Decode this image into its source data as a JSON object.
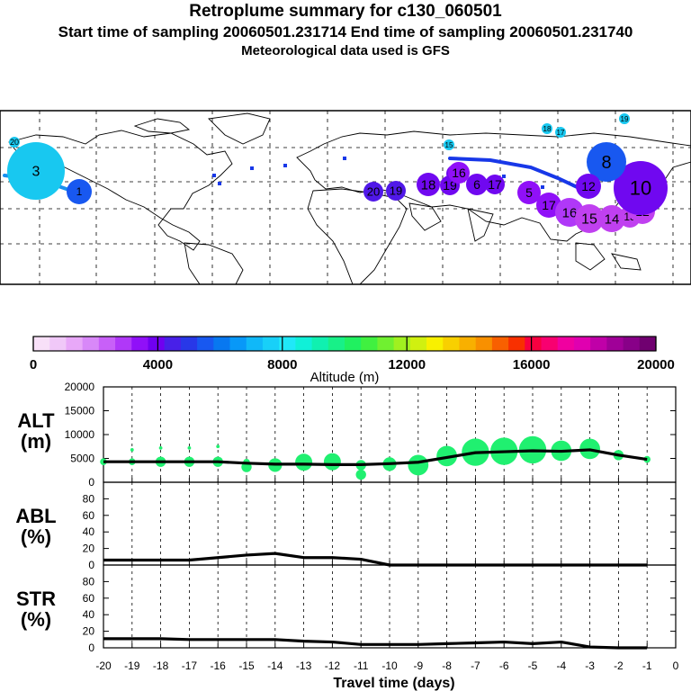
{
  "header": {
    "title": "Retroplume summary for c130_060501",
    "sampling_line": "Start time of sampling 20060501.231714     End time of sampling 20060501.231740",
    "met_line": "Meteorological data used is GFS"
  },
  "colorbar": {
    "ticks": [
      "0",
      "4000",
      "8000",
      "12000",
      "16000",
      "20000"
    ],
    "label": "Altitude (m)",
    "colors": [
      "#f8e0f8",
      "#f0c8f8",
      "#e8a8f8",
      "#d888f8",
      "#c860f8",
      "#b038f8",
      "#9010f8",
      "#7000f0",
      "#4820e8",
      "#2838e8",
      "#1858f0",
      "#0878f0",
      "#0898f8",
      "#10b8f8",
      "#18d0f8",
      "#20e8f8",
      "#10f0d8",
      "#10f0b0",
      "#18f088",
      "#20f060",
      "#40f040",
      "#70f030",
      "#a0f020",
      "#d0f010",
      "#f8f000",
      "#f8d000",
      "#f8b000",
      "#f89000",
      "#f86000",
      "#f83000",
      "#f80040",
      "#f80070",
      "#f000a0",
      "#e000b0",
      "#c000a8",
      "#a00098",
      "#880088",
      "#700070"
    ]
  },
  "map": {
    "clusters": [
      {
        "label": "20",
        "color": "#18c8f0"
      },
      {
        "label": "3",
        "color": "#18c8f0"
      },
      {
        "label": "1",
        "color": "#1858f0"
      },
      {
        "label": "20",
        "color": "#5018e8"
      },
      {
        "label": "19",
        "color": "#5018e8"
      },
      {
        "label": "18",
        "color": "#7008f0"
      },
      {
        "label": "20",
        "color": "#7008f0"
      },
      {
        "label": "19",
        "color": "#7008f0"
      },
      {
        "label": "6",
        "color": "#7008f0"
      },
      {
        "label": "17",
        "color": "#7008f0"
      },
      {
        "label": "16",
        "color": "#9010f8"
      },
      {
        "label": "5",
        "color": "#9010f8"
      },
      {
        "label": "17",
        "color": "#9010f8"
      },
      {
        "label": "16",
        "color": "#b038f8"
      },
      {
        "label": "15",
        "color": "#c040f0"
      },
      {
        "label": "14",
        "color": "#c040f0"
      },
      {
        "label": "13",
        "color": "#c040f0"
      },
      {
        "label": "12",
        "color": "#c040f0"
      },
      {
        "label": "10",
        "color": "#7008f0"
      },
      {
        "label": "8",
        "color": "#1858f0"
      },
      {
        "label": "12",
        "color": "#7008f0"
      },
      {
        "label": "18",
        "color": "#18c8f0"
      },
      {
        "label": "17",
        "color": "#18c8f0"
      },
      {
        "label": "19",
        "color": "#18c8f0"
      },
      {
        "label": "15",
        "color": "#18c8f0"
      }
    ]
  },
  "chart_data": {
    "type": "line",
    "xlabel": "Travel time (days)",
    "x_ticks": [
      "-20",
      "-19",
      "-18",
      "-17",
      "-16",
      "-15",
      "-14",
      "-13",
      "-12",
      "-11",
      "-10",
      "-9",
      "-8",
      "-7",
      "-6",
      "-5",
      "-4",
      "-3",
      "-2",
      "-1",
      "0"
    ],
    "xlim": [
      -20,
      0
    ],
    "panels": [
      {
        "name": "ALT",
        "label": [
          "ALT",
          "(m)"
        ],
        "ylim": [
          0,
          20000
        ],
        "y_ticks": [
          "0",
          "5000",
          "10000",
          "15000",
          "20000"
        ],
        "x": [
          -20,
          -19,
          -18,
          -17,
          -16,
          -15,
          -14,
          -13,
          -12,
          -11,
          -10,
          -9,
          -8,
          -7,
          -6,
          -5,
          -4,
          -3,
          -2,
          -1
        ],
        "y": [
          4300,
          4300,
          4300,
          4300,
          4300,
          4000,
          3800,
          3800,
          3700,
          3700,
          3900,
          4200,
          5200,
          6200,
          6400,
          6600,
          6500,
          6800,
          5700,
          4800
        ],
        "blobs": [
          {
            "x": -20,
            "alt": 4300,
            "size": 2
          },
          {
            "x": -19,
            "alt": 6800,
            "size": 1
          },
          {
            "x": -19,
            "alt": 4300,
            "size": 2
          },
          {
            "x": -18,
            "alt": 7200,
            "size": 1
          },
          {
            "x": -18,
            "alt": 4300,
            "size": 3
          },
          {
            "x": -17,
            "alt": 7200,
            "size": 1
          },
          {
            "x": -17,
            "alt": 4300,
            "size": 3
          },
          {
            "x": -16,
            "alt": 7500,
            "size": 1
          },
          {
            "x": -16,
            "alt": 4300,
            "size": 3
          },
          {
            "x": -15,
            "alt": 4200,
            "size": 2
          },
          {
            "x": -15,
            "alt": 3200,
            "size": 3
          },
          {
            "x": -14,
            "alt": 3600,
            "size": 4
          },
          {
            "x": -13,
            "alt": 4200,
            "size": 5
          },
          {
            "x": -12,
            "alt": 4300,
            "size": 5
          },
          {
            "x": -11,
            "alt": 3600,
            "size": 3
          },
          {
            "x": -11,
            "alt": 1600,
            "size": 3
          },
          {
            "x": -10,
            "alt": 3800,
            "size": 4
          },
          {
            "x": -9,
            "alt": 3600,
            "size": 6
          },
          {
            "x": -8,
            "alt": 5500,
            "size": 6
          },
          {
            "x": -7,
            "alt": 6300,
            "size": 8
          },
          {
            "x": -6,
            "alt": 6500,
            "size": 8
          },
          {
            "x": -5,
            "alt": 6800,
            "size": 8
          },
          {
            "x": -4,
            "alt": 6600,
            "size": 6
          },
          {
            "x": -3,
            "alt": 7000,
            "size": 6
          },
          {
            "x": -2,
            "alt": 5700,
            "size": 3
          },
          {
            "x": -1,
            "alt": 4800,
            "size": 2
          }
        ]
      },
      {
        "name": "ABL",
        "label": [
          "ABL",
          "(%)"
        ],
        "ylim": [
          0,
          100
        ],
        "y_ticks": [
          "0",
          "20",
          "40",
          "60",
          "80"
        ],
        "x": [
          -20,
          -19,
          -18,
          -17,
          -16,
          -15,
          -14,
          -13,
          -12,
          -11,
          -10,
          -9,
          -8,
          -7,
          -6,
          -5,
          -4,
          -3,
          -2,
          -1
        ],
        "y": [
          6,
          6,
          6,
          6,
          9,
          12,
          14,
          9,
          9,
          7,
          0,
          0,
          0,
          0,
          0,
          0,
          0,
          0,
          0,
          0
        ]
      },
      {
        "name": "STR",
        "label": [
          "STR",
          "(%)"
        ],
        "ylim": [
          0,
          100
        ],
        "y_ticks": [
          "0",
          "20",
          "40",
          "60",
          "80"
        ],
        "x": [
          -20,
          -19,
          -18,
          -17,
          -16,
          -15,
          -14,
          -13,
          -12,
          -11,
          -10,
          -9,
          -8,
          -7,
          -6,
          -5,
          -4,
          -3,
          -2,
          -1
        ],
        "y": [
          11,
          11,
          11,
          10,
          10,
          10,
          10,
          8,
          7,
          4,
          4,
          4,
          5,
          6,
          7,
          5,
          7,
          1,
          0,
          0
        ]
      }
    ]
  }
}
